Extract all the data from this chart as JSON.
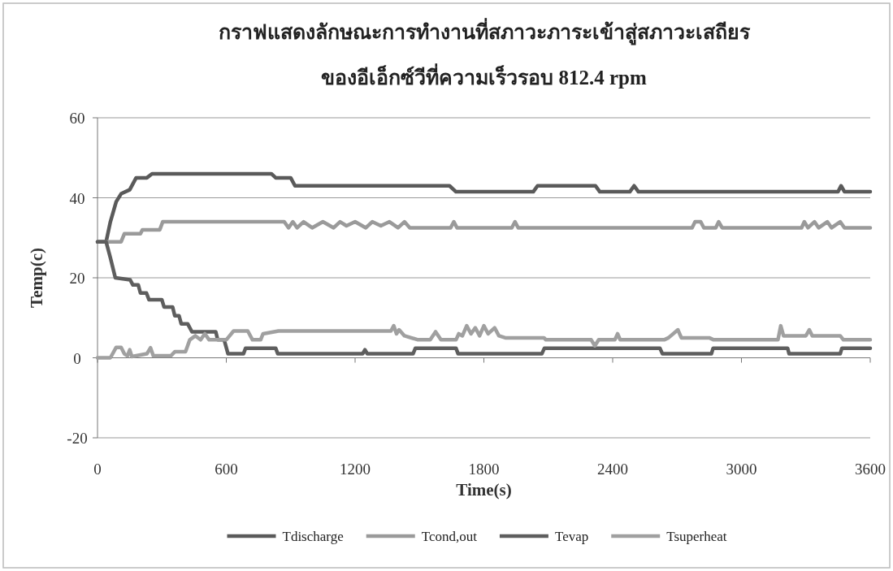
{
  "chart_data": {
    "type": "line",
    "title": "กราฟแสดงลักษณะการทำงานที่สภาวะภาระเข้าสู่สภาวะเสถียร",
    "subtitle": "ของอีเอ็กซ์วีที่ความเร็วรอบ 812.4 rpm",
    "xlabel": "Time(s)",
    "ylabel": "Temp(c)",
    "xlim": [
      0,
      3600
    ],
    "ylim": [
      -20,
      60
    ],
    "xticks": [
      0,
      600,
      1200,
      1800,
      2400,
      3000,
      3600
    ],
    "yticks": [
      -20,
      0,
      20,
      40,
      60
    ],
    "grid": "y",
    "legend": "bottom",
    "marker": "none",
    "line_style": "solid",
    "series": [
      {
        "name": "Tdischarge",
        "color": "#5a5a5a",
        "x": [
          0,
          40,
          60,
          87,
          110,
          150,
          180,
          230,
          254,
          810,
          830,
          900,
          920,
          1640,
          1670,
          2030,
          2050,
          2320,
          2340,
          2480,
          2500,
          2520,
          3450,
          3464,
          3480,
          3600
        ],
        "values": [
          29,
          29,
          34,
          39,
          41,
          42,
          45,
          45,
          46,
          46,
          45,
          45,
          43,
          43,
          41.5,
          41.5,
          43,
          43,
          41.5,
          41.5,
          43,
          41.5,
          41.5,
          43,
          41.5,
          41.5
        ]
      },
      {
        "name": "Tcond,out",
        "color": "#9a9a9a",
        "x": [
          0,
          110,
          125,
          200,
          209,
          290,
          304,
          870,
          890,
          910,
          930,
          960,
          1000,
          1050,
          1100,
          1130,
          1160,
          1200,
          1250,
          1280,
          1320,
          1360,
          1400,
          1430,
          1455,
          1645,
          1660,
          1675,
          1930,
          1945,
          1960,
          2770,
          2784,
          2810,
          2825,
          2880,
          2894,
          2910,
          3280,
          3293,
          3310,
          3340,
          3360,
          3400,
          3420,
          3460,
          3480,
          3600
        ],
        "values": [
          29,
          29,
          31,
          31,
          32,
          32,
          34,
          34,
          32.5,
          34,
          32.5,
          34,
          32.5,
          34,
          32.5,
          34,
          33,
          34,
          32.5,
          34,
          33,
          34,
          32.5,
          34,
          32.5,
          32.5,
          34,
          32.5,
          32.5,
          34,
          32.5,
          32.5,
          34,
          34,
          32.5,
          32.5,
          34,
          32.5,
          32.5,
          34,
          32.5,
          34,
          32.5,
          34,
          32.5,
          34,
          32.5,
          32.5
        ]
      },
      {
        "name": "Tevap",
        "color": "#5e5e5e",
        "x": [
          0,
          40,
          60,
          83,
          152,
          165,
          190,
          200,
          228,
          240,
          300,
          310,
          350,
          360,
          380,
          390,
          420,
          440,
          551,
          560,
          590,
          608,
          680,
          690,
          830,
          840,
          1235,
          1246,
          1257,
          1470,
          1481,
          1670,
          1680,
          2070,
          2082,
          2620,
          2632,
          2860,
          2868,
          3215,
          3222,
          3460,
          3468,
          3600
        ],
        "values": [
          29,
          29,
          25,
          20,
          19.5,
          18.2,
          18.2,
          16.2,
          16.2,
          14.5,
          14.5,
          12.7,
          12.7,
          10.5,
          10.5,
          8.5,
          8.5,
          6.5,
          6.5,
          4.5,
          4.5,
          1,
          1,
          2.4,
          2.4,
          1,
          1,
          2,
          1,
          1,
          2.4,
          2.4,
          1,
          1,
          2.4,
          2.4,
          1,
          1,
          2.4,
          2.4,
          1,
          1,
          2.4,
          2.4
        ]
      },
      {
        "name": "Tsuperheat",
        "color": "#a0a0a0",
        "x": [
          0,
          60,
          87,
          110,
          125,
          140,
          150,
          160,
          230,
          247,
          260,
          342,
          360,
          410,
          430,
          456,
          480,
          500,
          520,
          600,
          634,
          700,
          722,
          760,
          771,
          843,
          1367,
          1380,
          1393,
          1405,
          1430,
          1493,
          1550,
          1575,
          1600,
          1670,
          1683,
          1700,
          1720,
          1740,
          1760,
          1780,
          1800,
          1820,
          1850,
          1870,
          1900,
          2080,
          2089,
          2300,
          2317,
          2335,
          2410,
          2423,
          2435,
          2640,
          2660,
          2704,
          2720,
          2850,
          2870,
          3170,
          3183,
          3196,
          3300,
          3316,
          3330,
          3460,
          3475,
          3600
        ],
        "values": [
          0,
          0,
          2.6,
          2.6,
          1,
          0.5,
          2,
          0.3,
          1,
          2.5,
          0.5,
          0.5,
          1.5,
          1.5,
          4.5,
          5.5,
          4.5,
          6,
          4.5,
          4.5,
          6.7,
          6.7,
          4.5,
          4.5,
          6,
          6.7,
          6.7,
          8,
          6,
          7,
          5.5,
          4.5,
          4.5,
          6.5,
          4.5,
          4.5,
          6,
          5.5,
          8,
          6,
          7.5,
          5.5,
          8,
          6,
          7.5,
          5.5,
          5,
          5,
          4.5,
          4.5,
          3,
          4.5,
          4.5,
          6,
          4.5,
          4.5,
          5,
          7,
          5,
          5,
          4.5,
          4.5,
          8,
          5.5,
          5.5,
          7,
          5.5,
          5.5,
          4.5,
          4.5
        ]
      }
    ]
  }
}
